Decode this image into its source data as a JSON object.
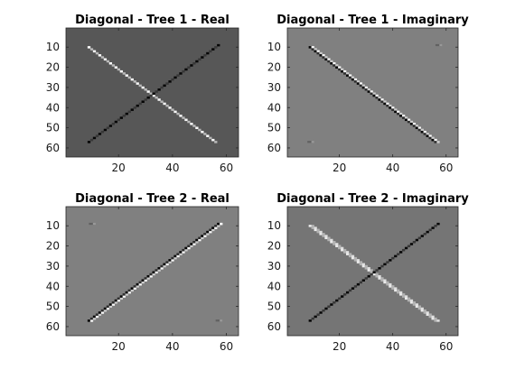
{
  "chart_data": [
    {
      "type": "image",
      "title": "Diagonal - Tree 1 - Real",
      "xlim": [
        1,
        64
      ],
      "ylim": [
        1,
        64
      ],
      "y_reversed": true,
      "xticks": [
        20,
        40,
        60
      ],
      "yticks": [
        10,
        20,
        30,
        40,
        50,
        60
      ],
      "colormap": "gray",
      "background_gray": 0.34,
      "lines": [
        {
          "from": [
            9,
            10
          ],
          "to": [
            56,
            57
          ],
          "style": "white-dotted"
        },
        {
          "from": [
            9,
            57
          ],
          "to": [
            57,
            9
          ],
          "style": "black-dotted"
        }
      ],
      "specks": []
    },
    {
      "type": "image",
      "title": "Diagonal - Tree 1 - Imaginary",
      "xlim": [
        1,
        64
      ],
      "ylim": [
        1,
        64
      ],
      "y_reversed": true,
      "xticks": [
        20,
        40,
        60
      ],
      "yticks": [
        10,
        20,
        30,
        40,
        50,
        60
      ],
      "colormap": "gray",
      "background_gray": 0.5,
      "lines": [
        {
          "from": [
            9,
            10
          ],
          "to": [
            56,
            57
          ],
          "style": "black-white-pair"
        }
      ],
      "specks": [
        [
          57,
          9
        ],
        [
          9,
          57
        ]
      ]
    },
    {
      "type": "image",
      "title": "Diagonal - Tree 2 - Real",
      "xlim": [
        1,
        64
      ],
      "ylim": [
        1,
        64
      ],
      "y_reversed": true,
      "xticks": [
        20,
        40,
        60
      ],
      "yticks": [
        10,
        20,
        30,
        40,
        50,
        60
      ],
      "colormap": "gray",
      "background_gray": 0.5,
      "lines": [
        {
          "from": [
            9,
            57
          ],
          "to": [
            57,
            9
          ],
          "style": "black-white-pair"
        }
      ],
      "specks": [
        [
          10,
          9
        ],
        [
          57,
          57
        ]
      ]
    },
    {
      "type": "image",
      "title": "Diagonal - Tree 2 - Imaginary",
      "xlim": [
        1,
        64
      ],
      "ylim": [
        1,
        64
      ],
      "y_reversed": true,
      "xticks": [
        20,
        40,
        60
      ],
      "yticks": [
        10,
        20,
        30,
        40,
        50,
        60
      ],
      "colormap": "gray",
      "background_gray": 0.46,
      "lines": [
        {
          "from": [
            9,
            10
          ],
          "to": [
            56,
            57
          ],
          "style": "light-gray-dotted"
        },
        {
          "from": [
            9,
            57
          ],
          "to": [
            57,
            9
          ],
          "style": "black-dotted"
        }
      ],
      "specks": []
    }
  ]
}
